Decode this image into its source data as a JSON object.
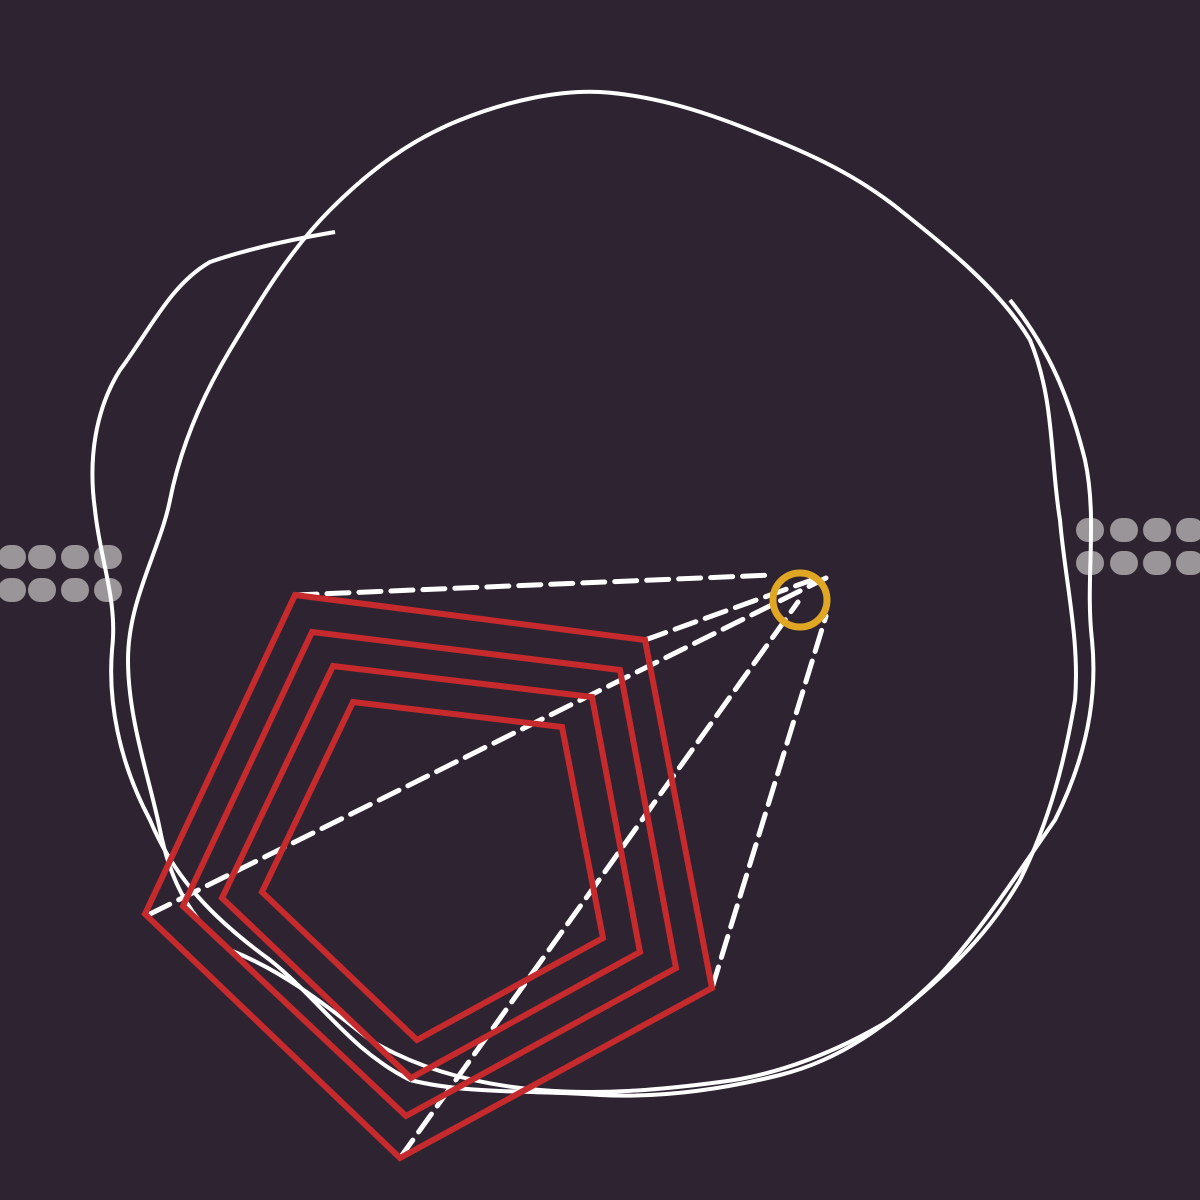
{
  "colors": {
    "background": "#2e2431",
    "outline": "#ffffff",
    "pentagon": "#c62a2c",
    "focus_ring": "#e0a624",
    "dots": "#9a9599"
  },
  "shapes": {
    "pentagon_count": 4,
    "dashed_connector_count": 5,
    "dot_row_count": 2,
    "blob_count": 2
  }
}
